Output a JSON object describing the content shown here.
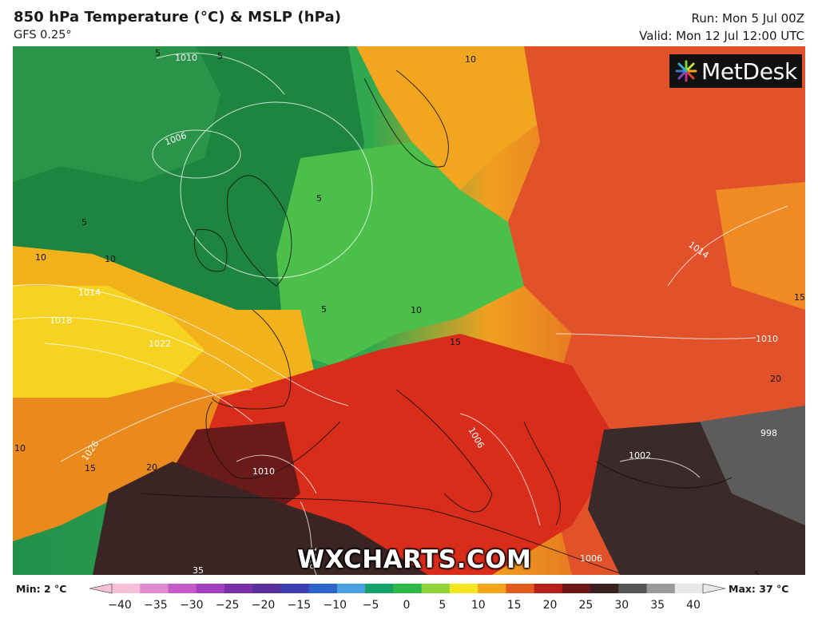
{
  "header": {
    "title": "850 hPa Temperature (°C) & MSLP (hPa)",
    "model": "GFS 0.25°",
    "run": "Run: Mon 5 Jul 00Z",
    "valid": "Valid: Mon 12 Jul 12:00 UTC"
  },
  "logo": {
    "text": "MetDesk",
    "icon": "metdesk-starburst-icon"
  },
  "watermark": "WXCHARTS.COM",
  "map_labels": {
    "isobar_1010_nw": "1010",
    "isobar_1006": "1006",
    "isobar_1014_w": "1014",
    "isobar_1018": "1018",
    "isobar_1022": "1022",
    "isobar_1026": "1026",
    "isobar_1010_iberia": "1010",
    "isobar_1010_africa": "1010",
    "isobar_1006_italy": "1006",
    "isobar_1002": "1002",
    "isobar_998": "998",
    "isobar_1006_south": "1006",
    "isobar_1014_east": "1014",
    "isobar_1010_east": "1010",
    "temp_5_top": "5",
    "temp_5_atlantic": "5",
    "temp_5_uk": "5",
    "temp_5_north": "5",
    "temp_5_sea": "5",
    "temp_10_west": "10",
    "temp_10_mid": "10",
    "temp_10_germany": "10",
    "temp_10_scandinavia": "10",
    "temp_10_bottom_left": "10",
    "temp_15_bottom_left": "15",
    "temp_15_alps": "15",
    "temp_15_east": "15",
    "temp_20_atlantic": "20",
    "temp_20_east": "20",
    "temp_35": "35",
    "temp_5_right": "5"
  },
  "legend": {
    "min": "Min: 2 °C",
    "max": "Max: 37 °C",
    "ticks": [
      "−40",
      "−35",
      "−30",
      "−25",
      "−20",
      "−15",
      "−10",
      "−5",
      "0",
      "5",
      "10",
      "15",
      "20",
      "25",
      "30",
      "35",
      "40"
    ],
    "colors": [
      "#f4c0d8",
      "#e08ad0",
      "#c45bc9",
      "#a23fbf",
      "#7a2ea8",
      "#5a2f9e",
      "#3e3fb0",
      "#2e63c8",
      "#4aa0e0",
      "#16a06a",
      "#2fb84a",
      "#8fd33a",
      "#f3e61e",
      "#f6a41a",
      "#e25a1c",
      "#b8201c",
      "#6d1717",
      "#3b2020",
      "#555555",
      "#9a9a9a",
      "#e8e8e8"
    ]
  }
}
